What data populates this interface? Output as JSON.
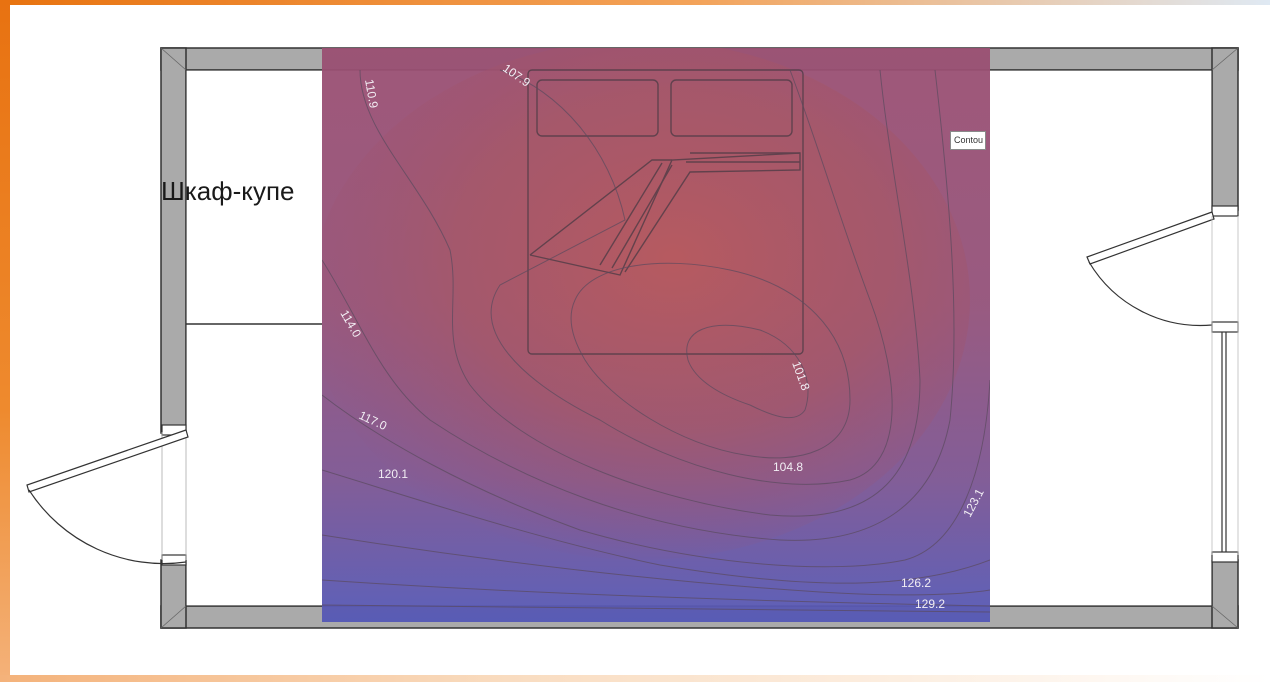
{
  "room": {
    "closet_label": "Шкаф-купе"
  },
  "tooltip": {
    "text": "Contou"
  },
  "contours": {
    "labels": [
      "110.9",
      "107.9",
      "114.0",
      "101.8",
      "117.0",
      "120.1",
      "104.8",
      "123.1",
      "126.2",
      "129.2"
    ],
    "heatmap_colors": {
      "high": "#5c5cb0",
      "low": "#b35c72",
      "lines": "#5a4a5e"
    }
  },
  "colors": {
    "wall_fill": "#aaaaaa",
    "wall_stroke": "#333333",
    "accent_orange": "#e8730f"
  }
}
